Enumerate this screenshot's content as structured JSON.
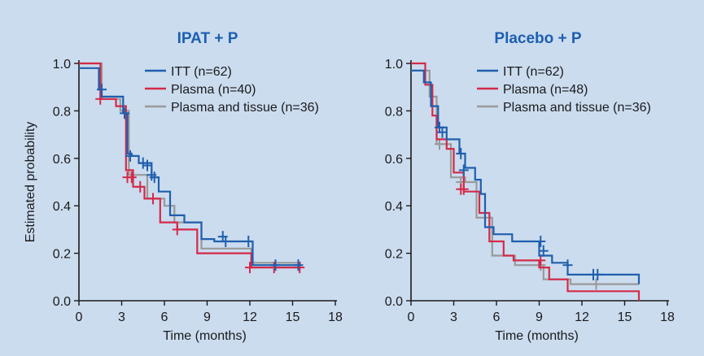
{
  "chart_data": [
    {
      "type": "line",
      "subtype": "kaplan-meier",
      "title": "IPAT + P",
      "xlabel": "Time (months)",
      "ylabel": "Estimated probability",
      "xlim": [
        0,
        18
      ],
      "ylim": [
        0,
        1
      ],
      "xticks": [
        "0",
        "3",
        "6",
        "9",
        "12",
        "15",
        "18"
      ],
      "yticks": [
        "0.0",
        "0.2",
        "0.4",
        "0.6",
        "0.8",
        "1.0"
      ],
      "legend_position": "top-right",
      "series": [
        {
          "name": "ITT (n=62)",
          "color": "#1f5fad",
          "steps": [
            [
              0,
              0.98
            ],
            [
              1.4,
              0.98
            ],
            [
              1.4,
              0.89
            ],
            [
              1.6,
              0.89
            ],
            [
              1.6,
              0.86
            ],
            [
              3.1,
              0.86
            ],
            [
              3.1,
              0.79
            ],
            [
              3.4,
              0.79
            ],
            [
              3.4,
              0.62
            ],
            [
              3.7,
              0.62
            ],
            [
              3.7,
              0.61
            ],
            [
              4.2,
              0.61
            ],
            [
              4.2,
              0.58
            ],
            [
              5.1,
              0.58
            ],
            [
              5.1,
              0.52
            ],
            [
              5.6,
              0.52
            ],
            [
              5.6,
              0.46
            ],
            [
              6.4,
              0.46
            ],
            [
              6.4,
              0.36
            ],
            [
              7.4,
              0.36
            ],
            [
              7.4,
              0.33
            ],
            [
              8.6,
              0.33
            ],
            [
              8.6,
              0.26
            ],
            [
              9.5,
              0.26
            ],
            [
              9.5,
              0.25
            ],
            [
              12.2,
              0.25
            ],
            [
              12.2,
              0.15
            ],
            [
              15.6,
              0.15
            ]
          ],
          "censors": [
            [
              1.6,
              0.89
            ],
            [
              3.2,
              0.79
            ],
            [
              3.6,
              0.61
            ],
            [
              4.5,
              0.58
            ],
            [
              4.8,
              0.57
            ],
            [
              5.1,
              0.53
            ],
            [
              5.3,
              0.52
            ],
            [
              10.1,
              0.27
            ],
            [
              10.3,
              0.25
            ],
            [
              11.9,
              0.25
            ],
            [
              13.8,
              0.15
            ],
            [
              15.4,
              0.15
            ]
          ]
        },
        {
          "name": "Plasma (n=40)",
          "color": "#d42a48",
          "steps": [
            [
              0,
              1.0
            ],
            [
              1.5,
              1.0
            ],
            [
              1.5,
              0.85
            ],
            [
              2.6,
              0.85
            ],
            [
              2.6,
              0.82
            ],
            [
              3.3,
              0.82
            ],
            [
              3.3,
              0.55
            ],
            [
              3.8,
              0.55
            ],
            [
              3.8,
              0.48
            ],
            [
              4.6,
              0.48
            ],
            [
              4.6,
              0.43
            ],
            [
              5.7,
              0.43
            ],
            [
              5.7,
              0.33
            ],
            [
              6.9,
              0.33
            ],
            [
              6.9,
              0.3
            ],
            [
              8.3,
              0.3
            ],
            [
              8.3,
              0.2
            ],
            [
              12.1,
              0.2
            ],
            [
              12.1,
              0.14
            ],
            [
              15.6,
              0.14
            ]
          ],
          "censors": [
            [
              1.5,
              0.85
            ],
            [
              3.4,
              0.52
            ],
            [
              3.7,
              0.52
            ],
            [
              4.3,
              0.48
            ],
            [
              5.2,
              0.43
            ],
            [
              6.9,
              0.3
            ],
            [
              12.0,
              0.14
            ],
            [
              13.7,
              0.14
            ],
            [
              15.5,
              0.14
            ]
          ]
        },
        {
          "name": "Plasma and tissue (n=36)",
          "color": "#999999",
          "steps": [
            [
              0,
              1.0
            ],
            [
              1.6,
              1.0
            ],
            [
              1.6,
              0.85
            ],
            [
              2.9,
              0.85
            ],
            [
              2.9,
              0.8
            ],
            [
              3.5,
              0.8
            ],
            [
              3.5,
              0.53
            ],
            [
              4.8,
              0.53
            ],
            [
              4.8,
              0.43
            ],
            [
              6.0,
              0.43
            ],
            [
              6.0,
              0.4
            ],
            [
              6.7,
              0.4
            ],
            [
              6.7,
              0.33
            ],
            [
              8.6,
              0.33
            ],
            [
              8.6,
              0.22
            ],
            [
              12.1,
              0.22
            ],
            [
              12.1,
              0.16
            ],
            [
              15.6,
              0.16
            ]
          ],
          "censors": []
        }
      ]
    },
    {
      "type": "line",
      "subtype": "kaplan-meier",
      "title": "Placebo + P",
      "xlabel": "Time (months)",
      "ylabel": "",
      "xlim": [
        0,
        18
      ],
      "ylim": [
        0,
        1
      ],
      "xticks": [
        "0",
        "3",
        "6",
        "9",
        "12",
        "15",
        "18"
      ],
      "yticks": [
        "0.0",
        "0.2",
        "0.4",
        "0.6",
        "0.8",
        "1.0"
      ],
      "legend_position": "top-right",
      "series": [
        {
          "name": "ITT (n=62)",
          "color": "#1f5fad",
          "steps": [
            [
              0,
              0.97
            ],
            [
              0.9,
              0.97
            ],
            [
              0.9,
              0.92
            ],
            [
              1.4,
              0.92
            ],
            [
              1.4,
              0.82
            ],
            [
              1.9,
              0.82
            ],
            [
              1.9,
              0.73
            ],
            [
              2.5,
              0.73
            ],
            [
              2.5,
              0.68
            ],
            [
              3.4,
              0.68
            ],
            [
              3.4,
              0.62
            ],
            [
              3.8,
              0.62
            ],
            [
              3.8,
              0.56
            ],
            [
              4.5,
              0.56
            ],
            [
              4.5,
              0.51
            ],
            [
              4.9,
              0.51
            ],
            [
              4.9,
              0.45
            ],
            [
              5.2,
              0.45
            ],
            [
              5.2,
              0.31
            ],
            [
              5.8,
              0.31
            ],
            [
              5.8,
              0.28
            ],
            [
              7.1,
              0.28
            ],
            [
              7.1,
              0.25
            ],
            [
              9.0,
              0.25
            ],
            [
              9.0,
              0.19
            ],
            [
              9.9,
              0.19
            ],
            [
              9.9,
              0.16
            ],
            [
              11.0,
              0.16
            ],
            [
              11.0,
              0.11
            ],
            [
              16.0,
              0.11
            ],
            [
              16.0,
              0.07
            ]
          ],
          "censors": [
            [
              2.0,
              0.73
            ],
            [
              2.2,
              0.71
            ],
            [
              3.5,
              0.62
            ],
            [
              3.7,
              0.55
            ],
            [
              9.1,
              0.25
            ],
            [
              9.3,
              0.21
            ],
            [
              11.0,
              0.15
            ],
            [
              12.8,
              0.11
            ],
            [
              13.1,
              0.11
            ]
          ]
        },
        {
          "name": "Plasma (n=48)",
          "color": "#d42a48",
          "steps": [
            [
              0,
              1.0
            ],
            [
              1.0,
              1.0
            ],
            [
              1.0,
              0.91
            ],
            [
              1.5,
              0.91
            ],
            [
              1.5,
              0.78
            ],
            [
              1.8,
              0.78
            ],
            [
              1.8,
              0.68
            ],
            [
              2.5,
              0.68
            ],
            [
              2.5,
              0.64
            ],
            [
              3.0,
              0.64
            ],
            [
              3.0,
              0.54
            ],
            [
              3.7,
              0.54
            ],
            [
              3.7,
              0.46
            ],
            [
              4.8,
              0.46
            ],
            [
              4.8,
              0.37
            ],
            [
              5.5,
              0.37
            ],
            [
              5.5,
              0.25
            ],
            [
              6.5,
              0.25
            ],
            [
              6.5,
              0.19
            ],
            [
              7.2,
              0.19
            ],
            [
              7.2,
              0.17
            ],
            [
              9.0,
              0.17
            ],
            [
              9.0,
              0.14
            ],
            [
              9.7,
              0.14
            ],
            [
              9.7,
              0.09
            ],
            [
              11.0,
              0.09
            ],
            [
              11.0,
              0.04
            ],
            [
              16.0,
              0.04
            ],
            [
              16.0,
              0.0
            ]
          ],
          "censors": [
            [
              3.5,
              0.47
            ],
            [
              3.7,
              0.47
            ],
            [
              9.1,
              0.17
            ]
          ]
        },
        {
          "name": "Plasma and tissue (n=36)",
          "color": "#999999",
          "steps": [
            [
              0,
              0.97
            ],
            [
              1.3,
              0.97
            ],
            [
              1.3,
              0.86
            ],
            [
              1.8,
              0.86
            ],
            [
              1.8,
              0.66
            ],
            [
              2.8,
              0.66
            ],
            [
              2.8,
              0.52
            ],
            [
              3.8,
              0.52
            ],
            [
              3.8,
              0.5
            ],
            [
              4.6,
              0.5
            ],
            [
              4.6,
              0.35
            ],
            [
              5.7,
              0.35
            ],
            [
              5.7,
              0.19
            ],
            [
              7.3,
              0.19
            ],
            [
              7.3,
              0.15
            ],
            [
              9.3,
              0.15
            ],
            [
              9.3,
              0.09
            ],
            [
              11.2,
              0.09
            ],
            [
              11.2,
              0.07
            ],
            [
              16.0,
              0.07
            ]
          ],
          "censors": [
            [
              2.0,
              0.66
            ],
            [
              3.5,
              0.5
            ],
            [
              9.1,
              0.15
            ],
            [
              13.0,
              0.07
            ]
          ]
        }
      ]
    }
  ]
}
